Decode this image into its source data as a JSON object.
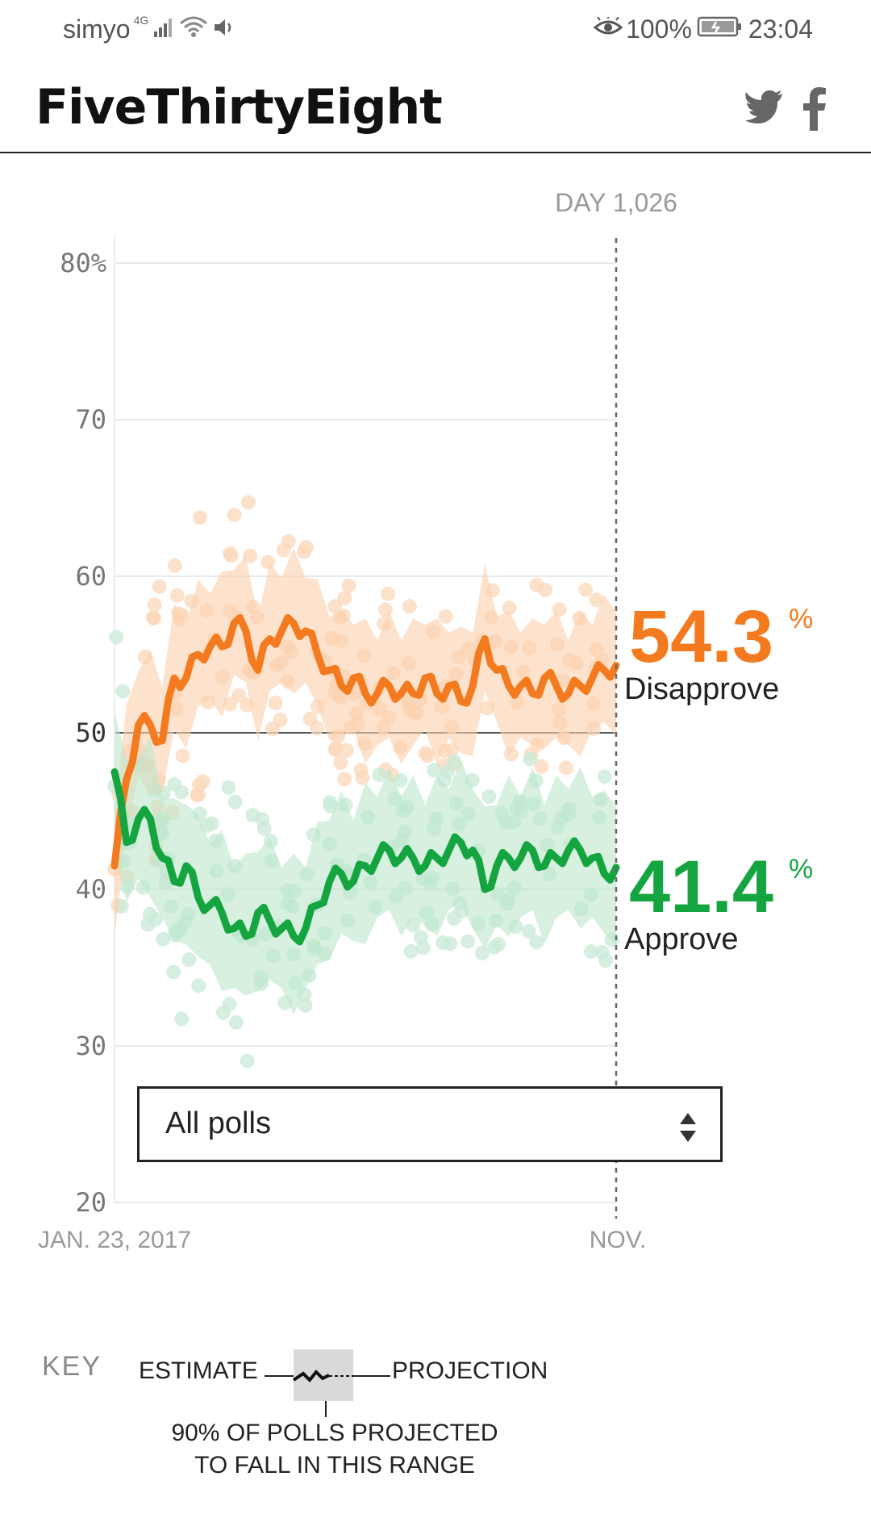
{
  "status_bar": {
    "carrier": "simyo",
    "network": "4G",
    "battery": "100%",
    "time": "23:04"
  },
  "header": {
    "brand": "FiveThirtyEight",
    "icons": [
      "twitter-icon",
      "facebook-icon"
    ]
  },
  "chart_data": {
    "type": "line",
    "day_label": "DAY 1,026",
    "y_ticks": [
      "80%",
      "70",
      "60",
      "50",
      "40",
      "30",
      "20"
    ],
    "ylim": [
      20,
      80
    ],
    "x_ticks": [
      "JAN. 23, 2017",
      "NOV."
    ],
    "series": [
      {
        "name": "Disapprove",
        "color": "#f47a1f",
        "current": "54.3",
        "values": [
          41.5,
          47,
          50.5,
          50.5,
          49.5,
          53.5,
          53.5,
          55,
          55.5,
          55.5,
          57,
          56.5,
          54,
          56,
          56.5,
          57,
          56.5,
          55,
          54,
          53,
          53.5,
          52.5,
          52.5,
          53,
          52.5,
          52.5,
          53.5,
          52.5,
          53,
          52,
          53,
          56,
          54,
          53,
          53,
          52.5,
          53.5,
          53,
          52.5,
          53,
          53.5,
          54,
          54.3
        ]
      },
      {
        "name": "Approve",
        "color": "#15a540",
        "current": "41.4",
        "values": [
          47.5,
          43,
          44.5,
          44.5,
          42,
          40.5,
          41.5,
          39.5,
          39,
          38.5,
          37.5,
          37,
          38.5,
          38,
          37.5,
          37,
          37.5,
          39,
          40.5,
          41,
          40.5,
          41.5,
          42,
          42.5,
          42,
          42,
          41.5,
          42,
          42.5,
          43,
          42.5,
          40,
          41.5,
          42,
          42,
          42.5,
          41.5,
          42,
          42.5,
          42.5,
          42,
          41,
          41.4
        ]
      }
    ]
  },
  "select": {
    "value": "All polls"
  },
  "key": {
    "title": "KEY",
    "estimate": "ESTIMATE",
    "projection": "PROJECTION",
    "range_line1": "90% OF POLLS PROJECTED",
    "range_line2": "TO FALL IN THIS RANGE"
  }
}
